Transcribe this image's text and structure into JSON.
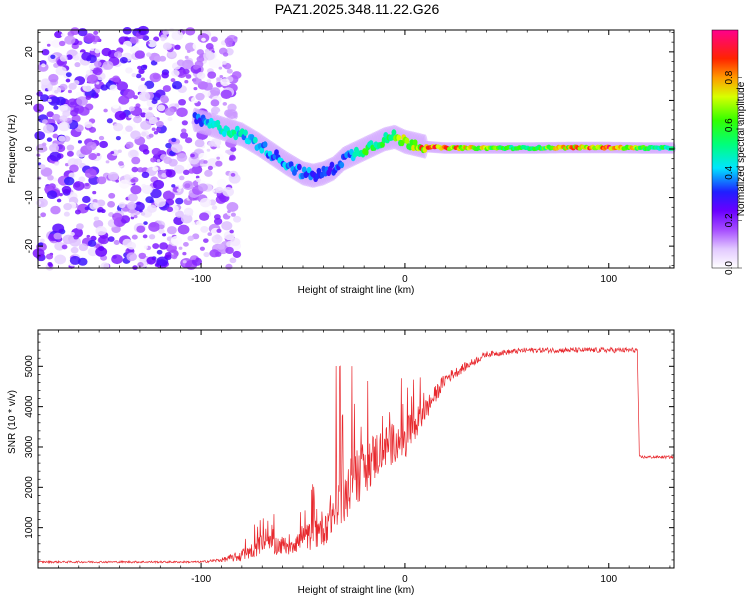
{
  "title": "PAZ1.2025.348.11.22.G26",
  "chart_data": [
    {
      "type": "heatmap",
      "name": "spectrogram",
      "xlabel": "Height of straight line (km)",
      "ylabel": "Frequency (Hz)",
      "xlim": [
        -180,
        132
      ],
      "ylim": [
        -24.5,
        24.5
      ],
      "xticks": [
        -100,
        0,
        100
      ],
      "yticks": [
        -20,
        -10,
        0,
        10,
        20
      ],
      "grid": false,
      "colorbar": {
        "label": "Normalized spectral amplitude",
        "range": [
          0.0,
          1.0
        ],
        "ticks": [
          0.0,
          0.2,
          0.4,
          0.6,
          0.8
        ],
        "tick_labels": [
          "0.0",
          "0.2",
          "0.4",
          "0.6",
          "0.8"
        ],
        "stops": [
          {
            "v": 0.0,
            "color": "#ffffff"
          },
          {
            "v": 0.08,
            "color": "#e2c9ff"
          },
          {
            "v": 0.16,
            "color": "#a64dff"
          },
          {
            "v": 0.24,
            "color": "#6a00ff"
          },
          {
            "v": 0.32,
            "color": "#1f1fff"
          },
          {
            "v": 0.42,
            "color": "#00e5ff"
          },
          {
            "v": 0.52,
            "color": "#00ff7a"
          },
          {
            "v": 0.62,
            "color": "#33ff00"
          },
          {
            "v": 0.72,
            "color": "#d8ff00"
          },
          {
            "v": 0.8,
            "color": "#ff9a00"
          },
          {
            "v": 0.88,
            "color": "#ff2400"
          },
          {
            "v": 1.0,
            "color": "#ff008c"
          }
        ]
      },
      "ridge": {
        "description": "frequency of dominant tone vs height",
        "x": [
          -103,
          -95,
          -88,
          -80,
          -72,
          -65,
          -58,
          -50,
          -45,
          -40,
          -35,
          -30,
          -25,
          -20,
          -15,
          -10,
          -5,
          0,
          5,
          10,
          20,
          40,
          60,
          80,
          100,
          120,
          132
        ],
        "freq": [
          6,
          5,
          4,
          3,
          1,
          -1,
          -3,
          -5,
          -5.5,
          -5,
          -4,
          -2,
          -1,
          0,
          1,
          2,
          2.5,
          1.5,
          1,
          0.5,
          0.2,
          0.2,
          0.2,
          0.3,
          0.3,
          0.2,
          0.2
        ],
        "amp": [
          0.35,
          0.45,
          0.5,
          0.45,
          0.42,
          0.4,
          0.4,
          0.38,
          0.38,
          0.35,
          0.34,
          0.36,
          0.45,
          0.6,
          0.55,
          0.6,
          0.65,
          0.7,
          0.75,
          0.85,
          0.88,
          0.7,
          0.55,
          0.8,
          0.9,
          0.6,
          0.5
        ]
      },
      "noise_region": {
        "x_from": -180,
        "x_to": -92,
        "amp_max": 0.3
      }
    },
    {
      "type": "line",
      "name": "snr",
      "xlabel": "Height of straight line (km)",
      "ylabel": "SNR (10 * v/v)",
      "xlim": [
        -180,
        132
      ],
      "ylim": [
        0,
        5900
      ],
      "xticks": [
        -100,
        0,
        100
      ],
      "yticks": [
        1000,
        2000,
        3000,
        4000,
        5000
      ],
      "line_color": "#e8292e",
      "grid": false,
      "trend": {
        "x": [
          -180,
          -100,
          -90,
          -80,
          -70,
          -60,
          -50,
          -40,
          -30,
          -20,
          -10,
          0,
          10,
          20,
          30,
          40,
          60,
          80,
          100,
          114,
          115,
          132
        ],
        "mean": [
          150,
          150,
          200,
          300,
          600,
          550,
          700,
          1000,
          1800,
          2500,
          3000,
          3200,
          3900,
          4700,
          5000,
          5300,
          5400,
          5400,
          5400,
          5400,
          2750,
          2750
        ],
        "spread": [
          40,
          40,
          80,
          250,
          400,
          400,
          500,
          800,
          1100,
          1200,
          900,
          800,
          500,
          250,
          180,
          120,
          110,
          110,
          110,
          110,
          60,
          60
        ]
      }
    }
  ]
}
